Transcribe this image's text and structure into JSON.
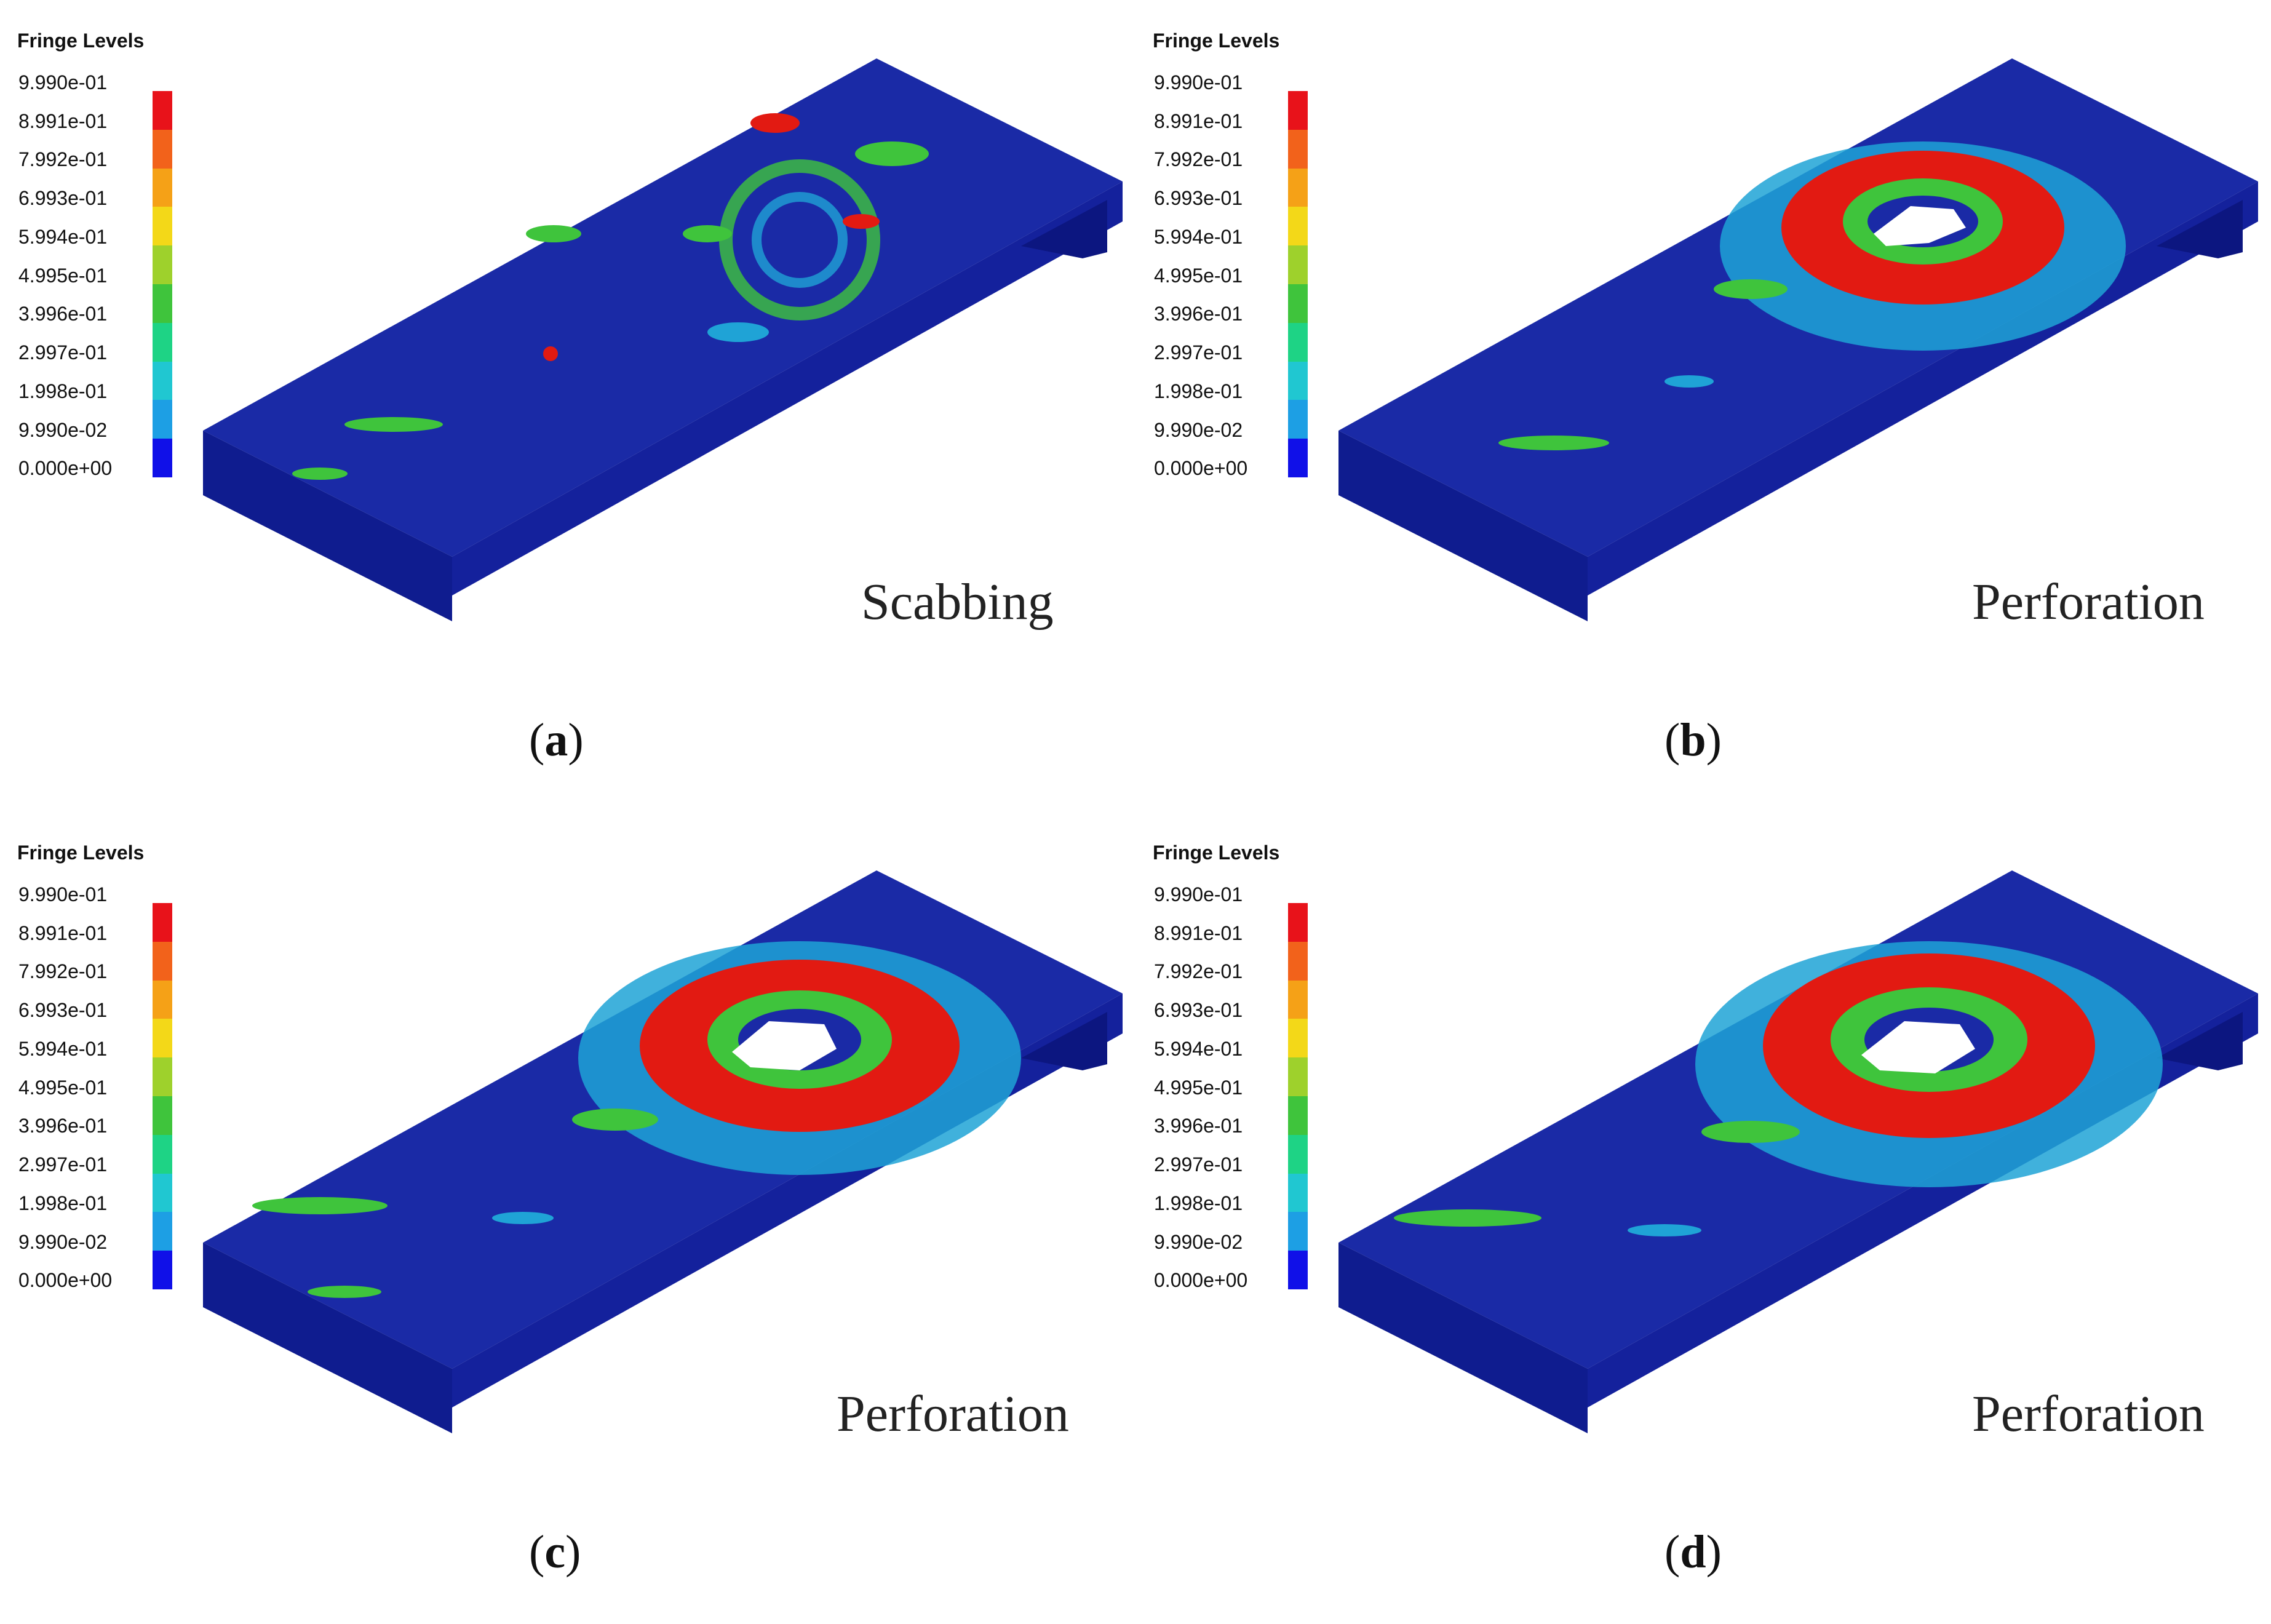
{
  "legend": {
    "title": "Fringe Levels",
    "levels": [
      "9.990e-01",
      "8.991e-01",
      "7.992e-01",
      "6.993e-01",
      "5.994e-01",
      "4.995e-01",
      "3.996e-01",
      "2.997e-01",
      "1.998e-01",
      "9.990e-02",
      "0.000e+00"
    ],
    "colors": [
      "#e8121a",
      "#f2621b",
      "#f5a117",
      "#f3d818",
      "#9ed12c",
      "#3fc43c",
      "#1ed385",
      "#20c7d1",
      "#1d9fe4",
      "#1553dc",
      "#1010e8"
    ]
  },
  "panels": [
    {
      "caption_letter": "a",
      "outcome": "Scabbing"
    },
    {
      "caption_letter": "b",
      "outcome": "Perforation"
    },
    {
      "caption_letter": "c",
      "outcome": "Perforation"
    },
    {
      "caption_letter": "d",
      "outcome": "Perforation"
    }
  ],
  "colors": {
    "plate": "#1a2aa6",
    "plate_edge": "#0c1680",
    "damage_high": "#e21a12",
    "damage_mid": "#3fc43c",
    "damage_low": "#1fa3d6"
  }
}
